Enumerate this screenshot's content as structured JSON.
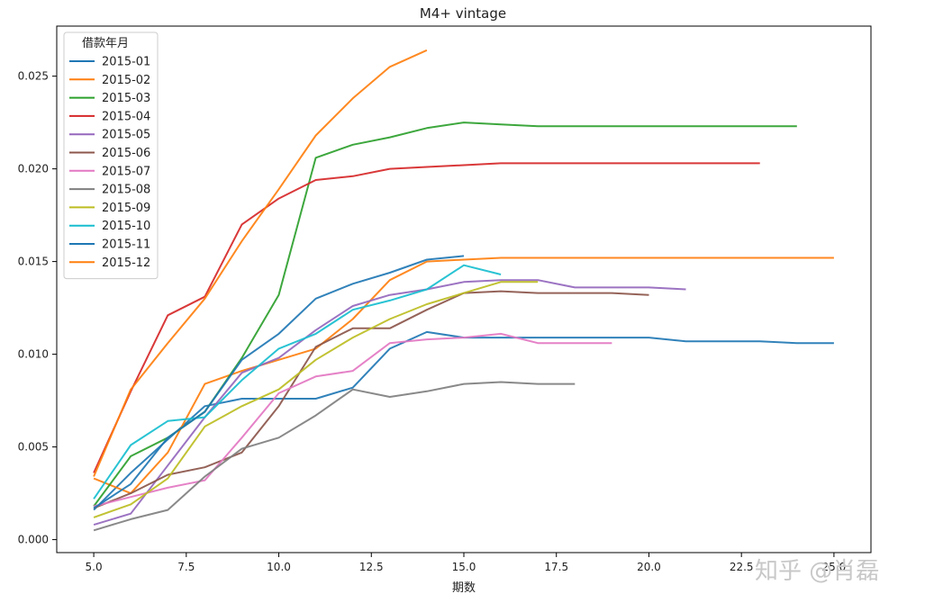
{
  "chart_data": {
    "type": "line",
    "title": "M4+ vintage",
    "xlabel": "期数",
    "ylabel": "",
    "xlim": [
      4.0,
      26.0
    ],
    "ylim": [
      -0.0007,
      0.0277
    ],
    "xticks": [
      5.0,
      7.5,
      10.0,
      12.5,
      15.0,
      17.5,
      20.0,
      22.5,
      25.0
    ],
    "xtick_labels": [
      "5.0",
      "7.5",
      "10.0",
      "12.5",
      "15.0",
      "17.5",
      "20.0",
      "22.5",
      "25.0"
    ],
    "yticks": [
      0.0,
      0.005,
      0.01,
      0.015,
      0.02,
      0.025
    ],
    "ytick_labels": [
      "0.000",
      "0.005",
      "0.010",
      "0.015",
      "0.020",
      "0.025"
    ],
    "grid": false,
    "legend": {
      "title": "借款年月",
      "placement": "top-left"
    },
    "series": [
      {
        "name": "2015-01",
        "color": "#1f77b4",
        "x": [
          5,
          6,
          7,
          8,
          9,
          10,
          11,
          12,
          13,
          14,
          15,
          16,
          17,
          18,
          19,
          20,
          21,
          22,
          23,
          24,
          25
        ],
        "y": [
          0.0016,
          0.0036,
          0.0054,
          0.0072,
          0.0076,
          0.0076,
          0.0076,
          0.0082,
          0.0103,
          0.0112,
          0.0109,
          0.0109,
          0.0109,
          0.0109,
          0.0109,
          0.0109,
          0.0107,
          0.0107,
          0.0107,
          0.0106,
          0.0106
        ]
      },
      {
        "name": "2015-02",
        "color": "#ff7f0e",
        "x": [
          5,
          6,
          7,
          8,
          9,
          10,
          11,
          12,
          13,
          14,
          15,
          16,
          17,
          18,
          19,
          20,
          21,
          22,
          23,
          24,
          25
        ],
        "y": [
          0.0033,
          0.0025,
          0.0047,
          0.0084,
          0.0091,
          0.0097,
          0.0103,
          0.0119,
          0.014,
          0.015,
          0.0151,
          0.0152,
          0.0152,
          0.0152,
          0.0152,
          0.0152,
          0.0152,
          0.0152,
          0.0152,
          0.0152,
          0.0152
        ]
      },
      {
        "name": "2015-03",
        "color": "#2ca02c",
        "x": [
          5,
          6,
          7,
          8,
          9,
          10,
          11,
          12,
          13,
          14,
          15,
          16,
          17,
          18,
          19,
          20,
          21,
          22,
          23,
          24
        ],
        "y": [
          0.0018,
          0.0045,
          0.0055,
          0.0069,
          0.0098,
          0.0132,
          0.0206,
          0.0213,
          0.0217,
          0.0222,
          0.0225,
          0.0224,
          0.0223,
          0.0223,
          0.0223,
          0.0223,
          0.0223,
          0.0223,
          0.0223,
          0.0223
        ]
      },
      {
        "name": "2015-04",
        "color": "#d62728",
        "x": [
          5,
          6,
          7,
          8,
          9,
          10,
          11,
          12,
          13,
          14,
          15,
          16,
          17,
          18,
          19,
          20,
          21,
          22,
          23
        ],
        "y": [
          0.0036,
          0.008,
          0.0121,
          0.0131,
          0.017,
          0.0184,
          0.0194,
          0.0196,
          0.02,
          0.0201,
          0.0202,
          0.0203,
          0.0203,
          0.0203,
          0.0203,
          0.0203,
          0.0203,
          0.0203,
          0.0203
        ]
      },
      {
        "name": "2015-05",
        "color": "#9467bd",
        "x": [
          5,
          6,
          7,
          8,
          9,
          10,
          11,
          12,
          13,
          14,
          15,
          16,
          17,
          18,
          19,
          20,
          21
        ],
        "y": [
          0.0008,
          0.0014,
          0.004,
          0.0066,
          0.009,
          0.0098,
          0.0113,
          0.0126,
          0.0132,
          0.0135,
          0.0139,
          0.014,
          0.014,
          0.0136,
          0.0136,
          0.0136,
          0.0135
        ]
      },
      {
        "name": "2015-06",
        "color": "#8c564b",
        "x": [
          5,
          6,
          7,
          8,
          9,
          10,
          11,
          12,
          13,
          14,
          15,
          16,
          17,
          18,
          19,
          20
        ],
        "y": [
          0.0017,
          0.0025,
          0.0035,
          0.0039,
          0.0047,
          0.0072,
          0.0104,
          0.0114,
          0.0114,
          0.0124,
          0.0133,
          0.0134,
          0.0133,
          0.0133,
          0.0133,
          0.0132
        ]
      },
      {
        "name": "2015-07",
        "color": "#e377c2",
        "x": [
          5,
          6,
          7,
          8,
          9,
          10,
          11,
          12,
          13,
          14,
          15,
          16,
          17,
          18,
          19
        ],
        "y": [
          0.0018,
          0.0023,
          0.0028,
          0.0032,
          0.0055,
          0.0079,
          0.0088,
          0.0091,
          0.0106,
          0.0108,
          0.0109,
          0.0111,
          0.0106,
          0.0106,
          0.0106
        ]
      },
      {
        "name": "2015-08",
        "color": "#7f7f7f",
        "x": [
          5,
          6,
          7,
          8,
          9,
          10,
          11,
          12,
          13,
          14,
          15,
          16,
          17,
          18
        ],
        "y": [
          0.0005,
          0.0011,
          0.0016,
          0.0034,
          0.0049,
          0.0055,
          0.0067,
          0.0081,
          0.0077,
          0.008,
          0.0084,
          0.0085,
          0.0084,
          0.0084
        ]
      },
      {
        "name": "2015-09",
        "color": "#bcbd22",
        "x": [
          5,
          6,
          7,
          8,
          9,
          10,
          11,
          12,
          13,
          14,
          15,
          16,
          17
        ],
        "y": [
          0.0012,
          0.0019,
          0.0033,
          0.0061,
          0.0072,
          0.0081,
          0.0097,
          0.0109,
          0.0119,
          0.0127,
          0.0133,
          0.0139,
          0.0139
        ]
      },
      {
        "name": "2015-10",
        "color": "#17becf",
        "x": [
          5,
          6,
          7,
          8,
          9,
          10,
          11,
          12,
          13,
          14,
          15,
          16
        ],
        "y": [
          0.0022,
          0.0051,
          0.0064,
          0.0066,
          0.0086,
          0.0103,
          0.0111,
          0.0124,
          0.0129,
          0.0135,
          0.0148,
          0.0143
        ]
      },
      {
        "name": "2015-11",
        "color": "#1f77b4",
        "x": [
          5,
          6,
          7,
          8,
          9,
          10,
          11,
          12,
          13,
          14,
          15
        ],
        "y": [
          0.0017,
          0.003,
          0.0055,
          0.0069,
          0.0097,
          0.0111,
          0.013,
          0.0138,
          0.0144,
          0.0151,
          0.0153
        ]
      },
      {
        "name": "2015-12",
        "color": "#ff7f0e",
        "x": [
          5,
          6,
          7,
          8,
          9,
          10,
          11,
          12,
          13,
          14
        ],
        "y": [
          0.0034,
          0.0081,
          0.0106,
          0.013,
          0.0161,
          0.0189,
          0.0218,
          0.0238,
          0.0255,
          0.0264
        ]
      }
    ]
  },
  "watermark": "知乎 @肖磊"
}
